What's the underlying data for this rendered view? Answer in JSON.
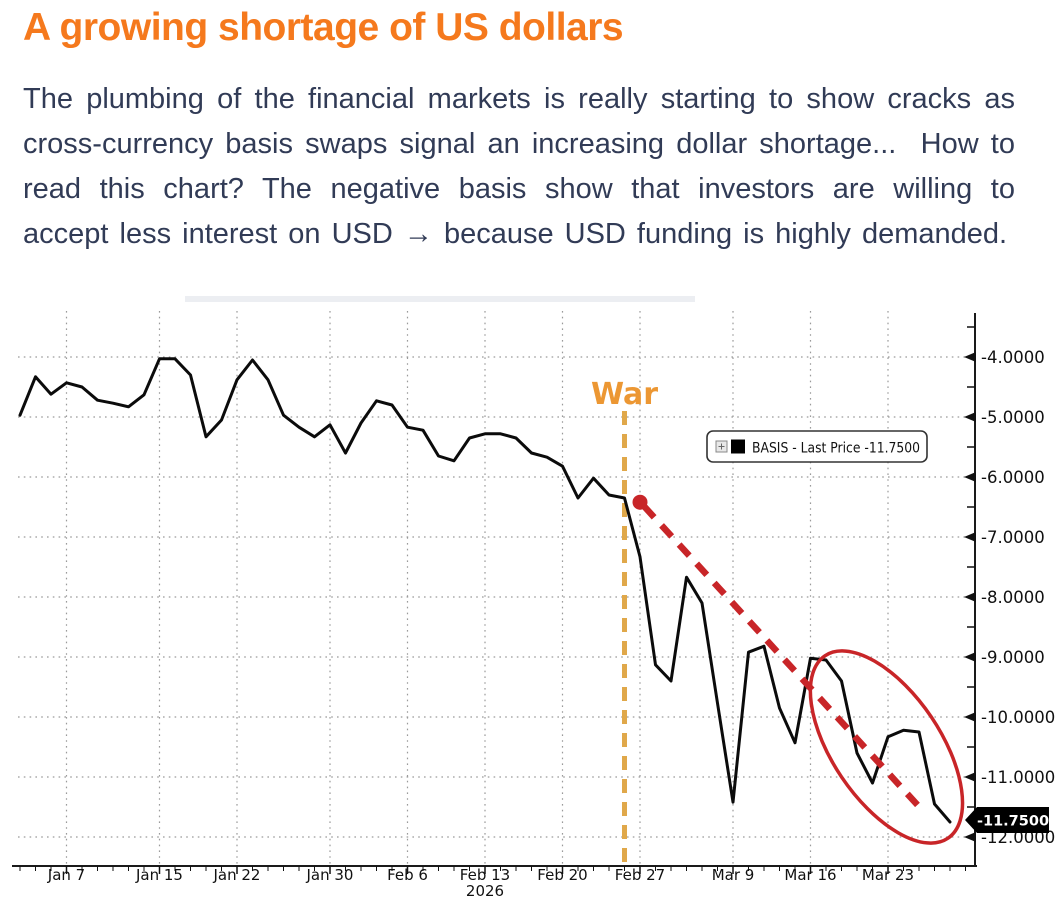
{
  "header": {
    "title": "A growing shortage of US dollars",
    "title_color": "#F5791D"
  },
  "intro": {
    "text": "The plumbing of the financial markets is really starting to show cracks as cross-currency basis swaps signal an increasing dollar shortage...  How to read this chart? The negative basis show that investors are willing to accept less interest on USD → because USD funding is highly demanded.",
    "text_color": "#313B56"
  },
  "chart_data": {
    "type": "line",
    "title": "",
    "xlabel": "",
    "ylabel": "",
    "grid": "dotted",
    "grid_color": "#9a9a9a",
    "series": [
      {
        "name": "BASIS",
        "legend_label": "BASIS - Last Price",
        "last_price": "-11.7500",
        "color": "#0b0b0b",
        "dates": [
          "Jan 2",
          "Jan 5",
          "Jan 6",
          "Jan 7",
          "Jan 8",
          "Jan 9",
          "Jan 12",
          "Jan 13",
          "Jan 14",
          "Jan 15",
          "Jan 16",
          "Jan 19",
          "Jan 20",
          "Jan 21",
          "Jan 22",
          "Jan 23",
          "Jan 26",
          "Jan 27",
          "Jan 28",
          "Jan 29",
          "Jan 30",
          "Feb 2",
          "Feb 3",
          "Feb 4",
          "Feb 5",
          "Feb 6",
          "Feb 9",
          "Feb 10",
          "Feb 11",
          "Feb 12",
          "Feb 13",
          "Feb 16",
          "Feb 17",
          "Feb 18",
          "Feb 19",
          "Feb 20",
          "Feb 23",
          "Feb 24",
          "Feb 25",
          "Feb 26",
          "Feb 27",
          "Mar 2",
          "Mar 3",
          "Mar 4",
          "Mar 5",
          "Mar 6",
          "Mar 9",
          "Mar 10",
          "Mar 11",
          "Mar 12",
          "Mar 13",
          "Mar 16",
          "Mar 17",
          "Mar 18",
          "Mar 19",
          "Mar 20",
          "Mar 23",
          "Mar 24",
          "Mar 25",
          "Mar 26",
          "Mar 27"
        ],
        "values": [
          -4.97,
          -4.33,
          -4.62,
          -4.43,
          -4.5,
          -4.72,
          -4.77,
          -4.83,
          -4.63,
          -4.03,
          -4.03,
          -4.3,
          -5.33,
          -5.05,
          -4.38,
          -4.05,
          -4.38,
          -4.97,
          -5.17,
          -5.33,
          -5.13,
          -5.6,
          -5.1,
          -4.73,
          -4.8,
          -5.17,
          -5.22,
          -5.65,
          -5.73,
          -5.35,
          -5.28,
          -5.28,
          -5.35,
          -5.6,
          -5.67,
          -5.82,
          -6.35,
          -6.02,
          -6.3,
          -6.35,
          -7.33,
          -9.13,
          -9.4,
          -7.67,
          -8.1,
          -9.77,
          -11.42,
          -8.92,
          -8.82,
          -9.85,
          -10.43,
          -9.02,
          -9.05,
          -9.4,
          -10.6,
          -11.1,
          -10.33,
          -10.22,
          -10.25,
          -11.45,
          -11.75
        ]
      }
    ],
    "x_axis": {
      "tick_labels": [
        "Jan 7",
        "Jan 15",
        "Jan 22",
        "Jan 30",
        "Feb 6",
        "Feb 13",
        "Feb 20",
        "Feb 27",
        "Mar 9",
        "Mar 16",
        "Mar 23"
      ],
      "tick_indices": [
        3,
        9,
        14,
        20,
        25,
        30,
        35,
        40,
        46,
        51,
        56
      ],
      "year_label": "2026",
      "year_under_index": 30
    },
    "y_axis": {
      "side": "right",
      "ticks": [
        -4,
        -5,
        -6,
        -7,
        -8,
        -9,
        -10,
        -11,
        -12
      ],
      "tick_labels": [
        "-4.0000",
        "-5.0000",
        "-6.0000",
        "-7.0000",
        "-8.0000",
        "-9.0000",
        "-10.0000",
        "-11.0000",
        "-12.0000"
      ],
      "minor_step": 0.5,
      "range_top": -3.2,
      "range_bottom": -12.45
    },
    "legend": {
      "expand_icon": "plus-box-icon",
      "swatch_color": "#000000",
      "label": "BASIS - Last Price",
      "value": "-11.7500"
    },
    "annotations": {
      "war": {
        "label": "War",
        "index": 39,
        "text_color": "#EC9733",
        "line_color": "#E0A84A"
      },
      "trend_arrow": {
        "start": {
          "index": 40,
          "value": -6.42
        },
        "end": {
          "index": 58.2,
          "value": -11.55
        },
        "color": "#C82528"
      },
      "highlight_ellipse": {
        "center_index": 55.9,
        "center_value": -10.5,
        "rx": 110,
        "ry": 54,
        "angle_deg": 56,
        "color": "#C82528"
      },
      "last_price_badge": {
        "text": "-11.7500",
        "value": -11.75,
        "bg": "#000000",
        "fg": "#ffffff"
      }
    }
  }
}
